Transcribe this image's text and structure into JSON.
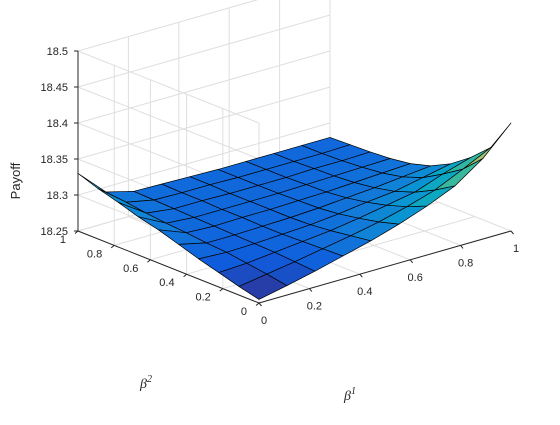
{
  "chart_data": {
    "type": "surface",
    "title": "",
    "xlabel": "β",
    "xlabel_superscript": "1",
    "ylabel": "β",
    "ylabel_superscript": "2",
    "zlabel": "Payoff",
    "xlim": [
      0,
      1
    ],
    "ylim": [
      0,
      1
    ],
    "zlim": [
      18.25,
      18.5
    ],
    "grid": true,
    "colormap": "parula",
    "x_ticks": [
      "0",
      "0.2",
      "0.4",
      "0.6",
      "0.8",
      "1"
    ],
    "y_ticks": [
      "0",
      "0.2",
      "0.4",
      "0.6",
      "0.8",
      "1"
    ],
    "z_ticks": [
      "18.25",
      "18.3",
      "18.35",
      "18.4",
      "18.45",
      "18.5"
    ],
    "x": [
      0.0,
      0.111,
      0.222,
      0.333,
      0.444,
      0.556,
      0.667,
      0.778,
      0.889,
      1.0
    ],
    "y": [
      0.0,
      0.111,
      0.222,
      0.333,
      0.444,
      0.556,
      0.667,
      0.778,
      0.889,
      1.0
    ],
    "z": [
      [
        18.255,
        18.262,
        18.27,
        18.278,
        18.287,
        18.296,
        18.303,
        18.312,
        18.32,
        18.33
      ],
      [
        18.263,
        18.268,
        18.272,
        18.276,
        18.278,
        18.281,
        18.283,
        18.286,
        18.29,
        18.293
      ],
      [
        18.272,
        18.274,
        18.276,
        18.277,
        18.278,
        18.279,
        18.28,
        18.281,
        18.282,
        18.283
      ],
      [
        18.282,
        18.281,
        18.28,
        18.279,
        18.279,
        18.28,
        18.28,
        18.281,
        18.281,
        18.282
      ],
      [
        18.292,
        18.288,
        18.284,
        18.281,
        18.28,
        18.28,
        18.28,
        18.28,
        18.281,
        18.281
      ],
      [
        18.304,
        18.296,
        18.29,
        18.285,
        18.282,
        18.281,
        18.28,
        18.28,
        18.28,
        18.28
      ],
      [
        18.318,
        18.306,
        18.297,
        18.29,
        18.285,
        18.282,
        18.281,
        18.28,
        18.28,
        18.28
      ],
      [
        18.335,
        18.318,
        18.304,
        18.294,
        18.288,
        18.284,
        18.282,
        18.281,
        18.28,
        18.28
      ],
      [
        18.362,
        18.336,
        18.318,
        18.302,
        18.292,
        18.286,
        18.283,
        18.281,
        18.28,
        18.28
      ],
      [
        18.4,
        18.355,
        18.33,
        18.31,
        18.296,
        18.288,
        18.284,
        18.282,
        18.281,
        18.28
      ]
    ]
  }
}
